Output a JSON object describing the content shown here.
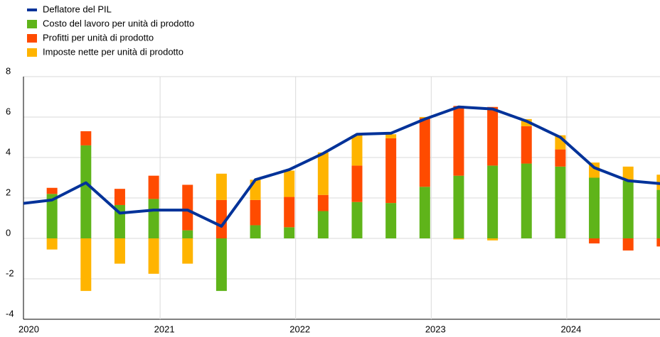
{
  "chart_data": {
    "type": "bar",
    "categories": [
      null,
      null,
      null,
      null,
      null,
      null,
      null,
      null,
      null,
      null,
      null,
      null,
      null,
      null,
      null,
      null,
      null,
      null,
      null,
      null
    ],
    "year_labels": [
      "2020",
      "2021",
      "2022",
      "2023",
      "2024"
    ],
    "series": [
      {
        "name": "Deflatore del PIL",
        "color": "#003299",
        "type": "line",
        "values": [
          1.7,
          1.9,
          2.75,
          1.25,
          1.4,
          1.4,
          0.6,
          2.9,
          3.4,
          4.2,
          5.15,
          5.2,
          5.9,
          6.5,
          6.4,
          5.8,
          5.0,
          3.5,
          2.85,
          2.7
        ]
      },
      {
        "name": "Costo del lavoro per unità di prodotto",
        "color": "#5fb41a",
        "type": "bar",
        "values": [
          null,
          2.2,
          4.6,
          1.65,
          1.95,
          0.4,
          -2.6,
          0.65,
          0.55,
          1.35,
          1.8,
          1.75,
          2.55,
          3.1,
          3.6,
          3.7,
          3.55,
          3.0,
          2.85,
          2.4
        ]
      },
      {
        "name": "Profitti per unità di prodotto",
        "color": "#ff4b00",
        "type": "bar",
        "values": [
          null,
          0.3,
          0.7,
          0.8,
          1.15,
          2.25,
          1.9,
          1.25,
          1.5,
          0.8,
          1.8,
          3.2,
          3.4,
          3.45,
          2.9,
          1.85,
          0.85,
          -0.25,
          -0.6,
          -0.4
        ]
      },
      {
        "name": "Imposte nette per unità di prodotto",
        "color": "#ffb400",
        "type": "bar",
        "values": [
          null,
          -0.55,
          -2.6,
          -1.25,
          -1.75,
          -1.25,
          1.3,
          1.0,
          1.3,
          2.1,
          1.5,
          0.2,
          0.05,
          -0.05,
          -0.1,
          0.35,
          0.7,
          0.75,
          0.7,
          0.75
        ]
      }
    ],
    "ylim": [
      -4,
      8
    ],
    "yticks": [
      -4,
      -2,
      0,
      2,
      4,
      6,
      8
    ],
    "grid": true
  }
}
